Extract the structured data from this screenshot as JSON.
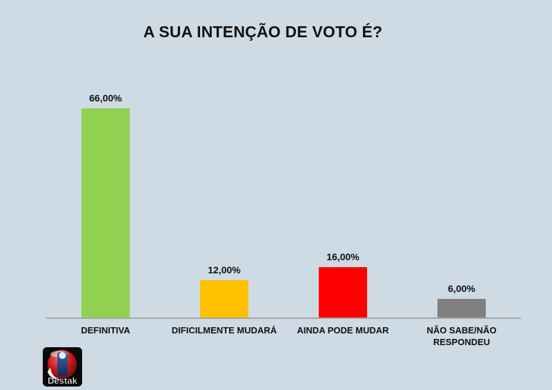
{
  "page": {
    "background_color": "#CEDAE4",
    "text_color": "#111111"
  },
  "chart_data": {
    "type": "bar",
    "title": "A SUA INTENÇÃO DE VOTO É?",
    "categories": [
      "DEFINITIVA",
      "DIFICILMENTE MUDARÁ",
      "AINDA PODE MUDAR",
      "NÃO SABE/NÃO RESPONDEU"
    ],
    "values": [
      66,
      12,
      16,
      6
    ],
    "value_labels": [
      "66,00%",
      "12,00%",
      "16,00%",
      "6,00%"
    ],
    "bar_colors": [
      "#92D050",
      "#FFC000",
      "#FF0000",
      "#7F7F7F"
    ],
    "xlabel": "",
    "ylabel": "",
    "ylim": [
      0,
      70
    ],
    "grid": false,
    "legend": false,
    "axis_line_color": "#A6A6A6"
  },
  "logo": {
    "text": "Destak",
    "square_color": "#0b0b0b",
    "sphere_red": "#c41818",
    "sphere_blue": "#16356e"
  }
}
